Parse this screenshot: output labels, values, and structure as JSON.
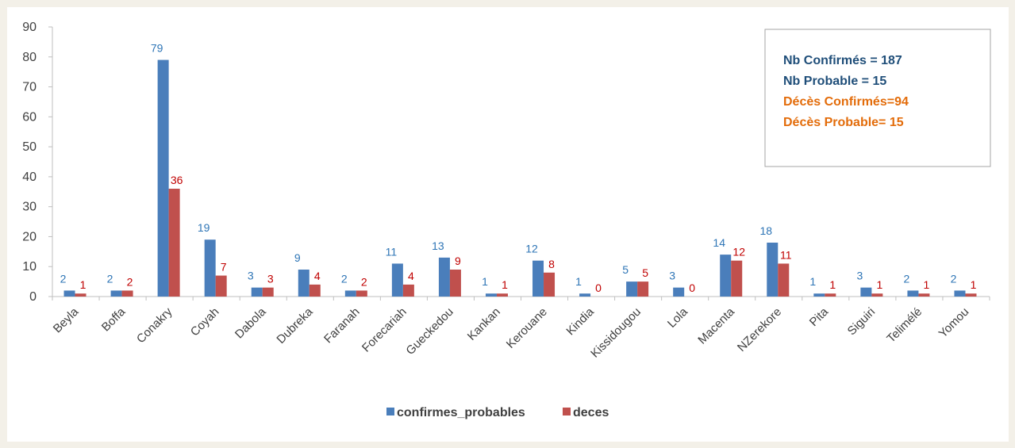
{
  "chart_data": {
    "type": "bar",
    "title": "",
    "xlabel": "",
    "ylabel": "",
    "ylim": [
      0,
      90
    ],
    "yticks": [
      0,
      10,
      20,
      30,
      40,
      50,
      60,
      70,
      80,
      90
    ],
    "grid": false,
    "legend_position": "bottom",
    "categories": [
      "Beyla",
      "Boffa",
      "Conakry",
      "Coyah",
      "Dabola",
      "Dubreka",
      "Faranah",
      "Forecariah",
      "Gueckedou",
      "Kankan",
      "Kerouane",
      "Kindia",
      "Kissidougou",
      "Lola",
      "Macenta",
      "NZerekore",
      "Pita",
      "Siguiri",
      "Telimélé",
      "Yomou"
    ],
    "series": [
      {
        "name": "confirmes_probables",
        "color": "#4a7ebb",
        "label_color": "#2e75b6",
        "values": [
          2,
          2,
          79,
          19,
          3,
          9,
          2,
          11,
          13,
          1,
          12,
          1,
          5,
          3,
          14,
          18,
          1,
          3,
          2,
          2
        ]
      },
      {
        "name": "deces",
        "color": "#c0504d",
        "label_color": "#c00000",
        "values": [
          1,
          2,
          36,
          7,
          3,
          4,
          2,
          4,
          9,
          1,
          8,
          0,
          5,
          0,
          12,
          11,
          1,
          1,
          1,
          1
        ]
      }
    ],
    "annotations": [
      {
        "text": "Nb Confirmés = 187",
        "color": "#1f4e79"
      },
      {
        "text": "Nb Probable = 15",
        "color": "#1f4e79"
      },
      {
        "text": "Décès Confirmés=94",
        "color": "#e36c0a"
      },
      {
        "text": "Décès Probable= 15",
        "color": "#e36c0a"
      }
    ],
    "annotation_position": "top-right"
  }
}
